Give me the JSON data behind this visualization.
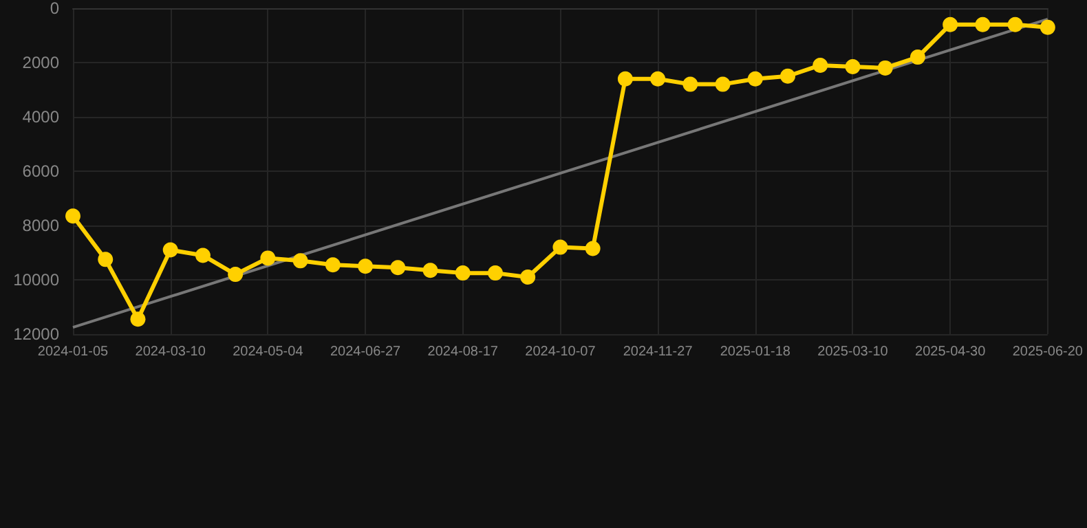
{
  "chart_data": {
    "type": "line",
    "categories": [
      "2024-01-05",
      null,
      null,
      "2024-03-10",
      null,
      null,
      "2024-05-04",
      null,
      null,
      "2024-06-27",
      null,
      null,
      "2024-08-17",
      null,
      null,
      "2024-10-07",
      null,
      null,
      "2024-11-27",
      null,
      null,
      "2025-01-18",
      null,
      null,
      "2025-03-10",
      null,
      null,
      "2025-04-30",
      null,
      null,
      "2025-06-20"
    ],
    "series": [
      {
        "color": "#ffd000",
        "marker": "circle",
        "values": [
          7650,
          9250,
          11450,
          8900,
          9100,
          9800,
          9200,
          9300,
          9450,
          9500,
          9550,
          9650,
          9750,
          9750,
          9900,
          8800,
          8850,
          2600,
          2600,
          2800,
          2800,
          2600,
          2500,
          2100,
          2150,
          2200,
          1800,
          600,
          600,
          600,
          700
        ]
      },
      {
        "type": "line",
        "color": "#777777",
        "marker": "none",
        "values": [
          11750,
          null,
          null,
          null,
          null,
          null,
          null,
          null,
          null,
          null,
          null,
          null,
          null,
          null,
          null,
          null,
          null,
          null,
          null,
          null,
          null,
          null,
          null,
          null,
          null,
          null,
          null,
          null,
          null,
          null,
          400
        ]
      }
    ],
    "ylim": [
      12000,
      0
    ],
    "yticks": [
      0,
      2000,
      4000,
      6000,
      8000,
      10000,
      12000
    ],
    "grid": true
  }
}
